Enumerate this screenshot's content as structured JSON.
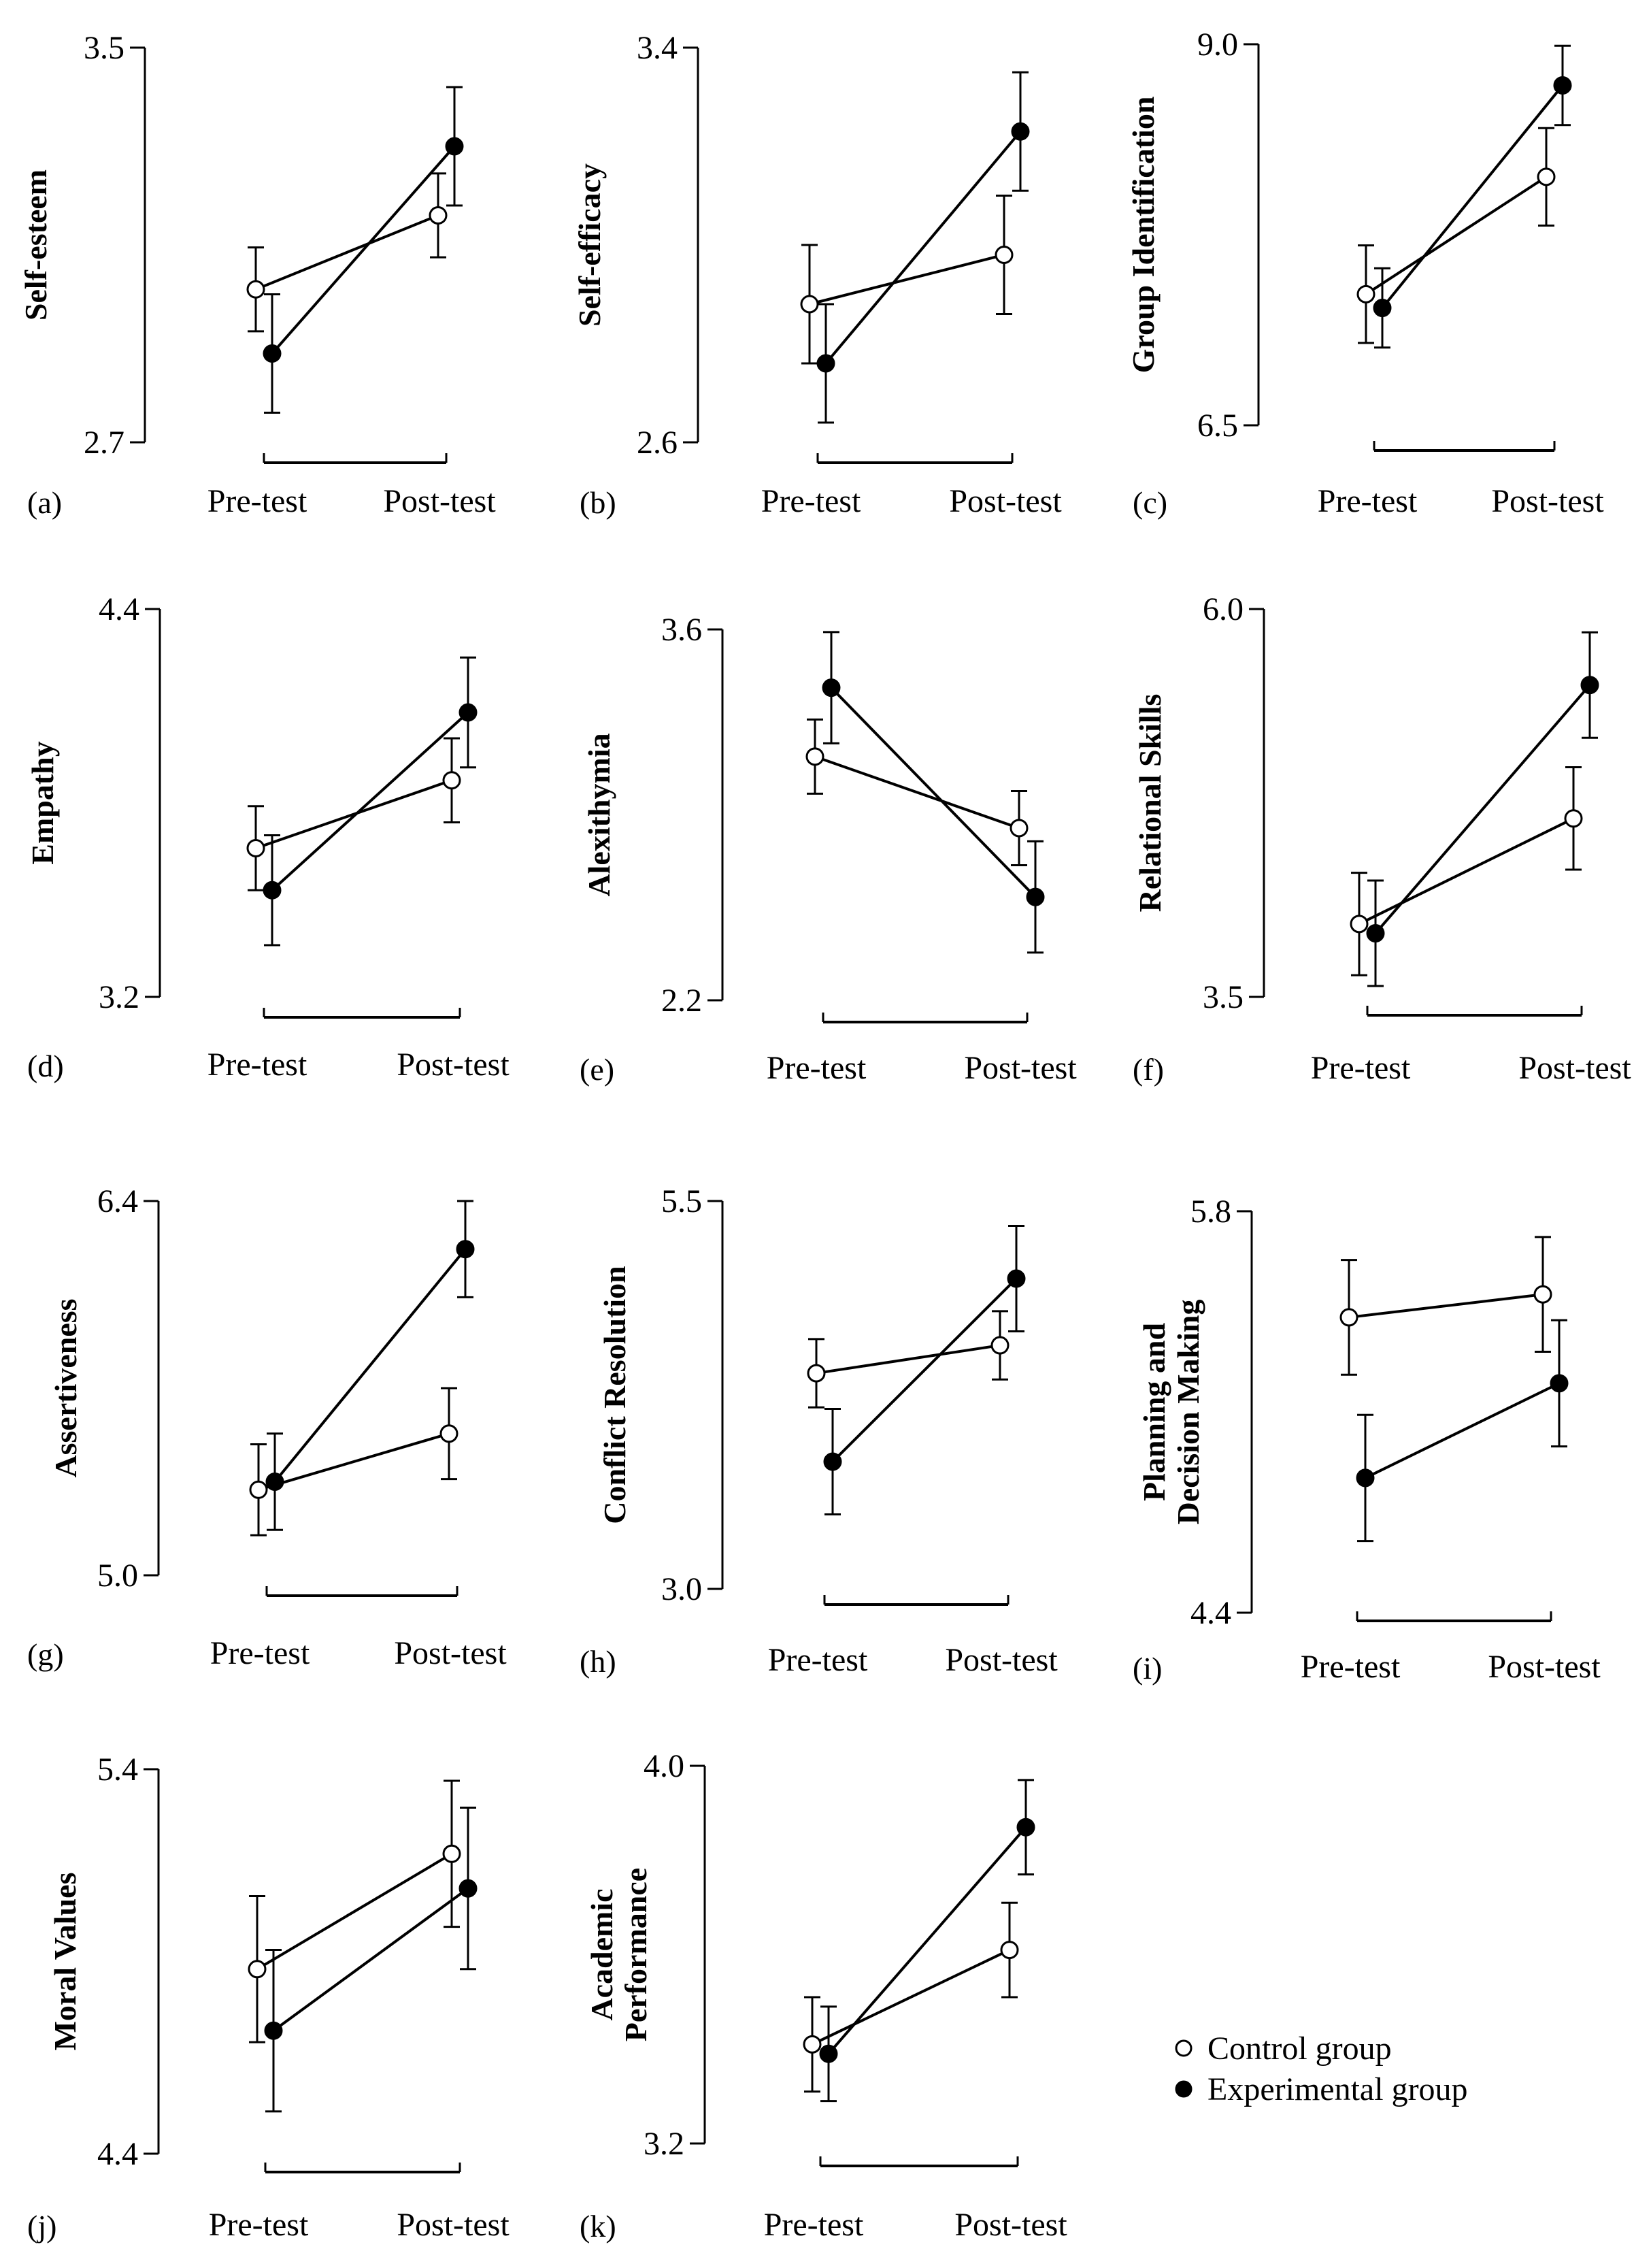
{
  "chart_data": [
    {
      "panel": "(a)",
      "type": "line",
      "ylabel": [
        "Self-esteem"
      ],
      "categories": [
        "Pre-test",
        "Post-test"
      ],
      "ylim": [
        2.7,
        3.5
      ],
      "ytick_labels": [
        "3.5",
        "2.7"
      ],
      "series": [
        {
          "name": "Control group",
          "values": [
            3.01,
            3.16
          ],
          "errors": [
            0.085,
            0.085
          ]
        },
        {
          "name": "Experimental group",
          "values": [
            2.88,
            3.3
          ],
          "errors": [
            0.12,
            0.12
          ]
        }
      ]
    },
    {
      "panel": "(b)",
      "type": "line",
      "ylabel": [
        "Self-efficacy"
      ],
      "categories": [
        "Pre-test",
        "Post-test"
      ],
      "ylim": [
        2.6,
        3.4
      ],
      "ytick_labels": [
        "3.4",
        "2.6"
      ],
      "series": [
        {
          "name": "Control group",
          "values": [
            2.88,
            2.98
          ],
          "errors": [
            0.12,
            0.12
          ]
        },
        {
          "name": "Experimental group",
          "values": [
            2.76,
            3.23
          ],
          "errors": [
            0.12,
            0.12
          ]
        }
      ]
    },
    {
      "panel": "(c)",
      "type": "line",
      "ylabel": [
        "Group Identification"
      ],
      "categories": [
        "Pre-test",
        "Post-test"
      ],
      "ylim": [
        6.5,
        9.0
      ],
      "ytick_labels": [
        "9.0",
        "6.5"
      ],
      "series": [
        {
          "name": "Control group",
          "values": [
            7.36,
            8.13
          ],
          "errors": [
            0.32,
            0.32
          ]
        },
        {
          "name": "Experimental group",
          "values": [
            7.27,
            8.73
          ],
          "errors": [
            0.26,
            0.26
          ]
        }
      ]
    },
    {
      "panel": "(d)",
      "type": "line",
      "ylabel": [
        "Empathy"
      ],
      "categories": [
        "Pre-test",
        "Post-test"
      ],
      "ylim": [
        3.2,
        4.4
      ],
      "ytick_labels": [
        "4.4",
        "3.2"
      ],
      "series": [
        {
          "name": "Control group",
          "values": [
            3.66,
            3.87
          ],
          "errors": [
            0.13,
            0.13
          ]
        },
        {
          "name": "Experimental group",
          "values": [
            3.53,
            4.08
          ],
          "errors": [
            0.17,
            0.17
          ]
        }
      ]
    },
    {
      "panel": "(e)",
      "type": "line",
      "ylabel": [
        "Alexithymia"
      ],
      "categories": [
        "Pre-test",
        "Post-test"
      ],
      "ylim": [
        2.2,
        3.6
      ],
      "ytick_labels": [
        "3.6",
        "2.2"
      ],
      "series": [
        {
          "name": "Control group",
          "values": [
            3.12,
            2.85
          ],
          "errors": [
            0.14,
            0.14
          ]
        },
        {
          "name": "Experimental group",
          "values": [
            3.38,
            2.59
          ],
          "errors": [
            0.21,
            0.21
          ]
        }
      ]
    },
    {
      "panel": "(f)",
      "type": "line",
      "ylabel": [
        "Relational Skills"
      ],
      "categories": [
        "Pre-test",
        "Post-test"
      ],
      "ylim": [
        3.5,
        6.0
      ],
      "ytick_labels": [
        "6.0",
        "3.5"
      ],
      "series": [
        {
          "name": "Control group",
          "values": [
            3.97,
            4.65
          ],
          "errors": [
            0.33,
            0.33
          ]
        },
        {
          "name": "Experimental group",
          "values": [
            3.91,
            5.51
          ],
          "errors": [
            0.34,
            0.34
          ]
        }
      ]
    },
    {
      "panel": "(g)",
      "type": "line",
      "ylabel": [
        "Assertiveness"
      ],
      "categories": [
        "Pre-test",
        "Post-test"
      ],
      "ylim": [
        5.0,
        6.4
      ],
      "ytick_labels": [
        "6.4",
        "5.0"
      ],
      "series": [
        {
          "name": "Control group",
          "values": [
            5.32,
            5.53
          ],
          "errors": [
            0.17,
            0.17
          ]
        },
        {
          "name": "Experimental group",
          "values": [
            5.35,
            6.22
          ],
          "errors": [
            0.18,
            0.18
          ]
        }
      ]
    },
    {
      "panel": "(h)",
      "type": "line",
      "ylabel": [
        "Conflict Resolution"
      ],
      "categories": [
        "Pre-test",
        "Post-test"
      ],
      "ylim": [
        3.0,
        5.5
      ],
      "ytick_labels": [
        "5.5",
        "3.0"
      ],
      "series": [
        {
          "name": "Control group",
          "values": [
            4.39,
            4.57
          ],
          "errors": [
            0.22,
            0.22
          ]
        },
        {
          "name": "Experimental group",
          "values": [
            3.82,
            5.0
          ],
          "errors": [
            0.34,
            0.34
          ]
        }
      ]
    },
    {
      "panel": "(i)",
      "type": "line",
      "ylabel": [
        "Planning and",
        "Decision Making"
      ],
      "categories": [
        "Pre-test",
        "Post-test"
      ],
      "ylim": [
        4.4,
        5.8
      ],
      "ytick_labels": [
        "5.8",
        "4.4"
      ],
      "series": [
        {
          "name": "Control group",
          "values": [
            5.43,
            5.51
          ],
          "errors": [
            0.2,
            0.2
          ]
        },
        {
          "name": "Experimental group",
          "values": [
            4.87,
            5.2
          ],
          "errors": [
            0.22,
            0.22
          ]
        }
      ]
    },
    {
      "panel": "(j)",
      "type": "line",
      "ylabel": [
        "Moral Values"
      ],
      "categories": [
        "Pre-test",
        "Post-test"
      ],
      "ylim": [
        4.4,
        5.4
      ],
      "ytick_labels": [
        "5.4",
        "4.4"
      ],
      "series": [
        {
          "name": "Control group",
          "values": [
            4.88,
            5.18
          ],
          "errors": [
            0.19,
            0.19
          ]
        },
        {
          "name": "Experimental group",
          "values": [
            4.72,
            5.09
          ],
          "errors": [
            0.21,
            0.21
          ]
        }
      ]
    },
    {
      "panel": "(k)",
      "type": "line",
      "ylabel": [
        "Academic",
        "Performance"
      ],
      "categories": [
        "Pre-test",
        "Post-test"
      ],
      "ylim": [
        3.2,
        4.0
      ],
      "ytick_labels": [
        "4.0",
        "3.2"
      ],
      "series": [
        {
          "name": "Control group",
          "values": [
            3.41,
            3.61
          ],
          "errors": [
            0.1,
            0.1
          ]
        },
        {
          "name": "Experimental group",
          "values": [
            3.39,
            3.87
          ],
          "errors": [
            0.1,
            0.1
          ]
        }
      ]
    }
  ],
  "legend": {
    "control_label": "Control group",
    "experimental_label": "Experimental group"
  },
  "colors": {
    "stroke": "#000000",
    "control_fill": "#ffffff",
    "experimental_fill": "#000000"
  }
}
